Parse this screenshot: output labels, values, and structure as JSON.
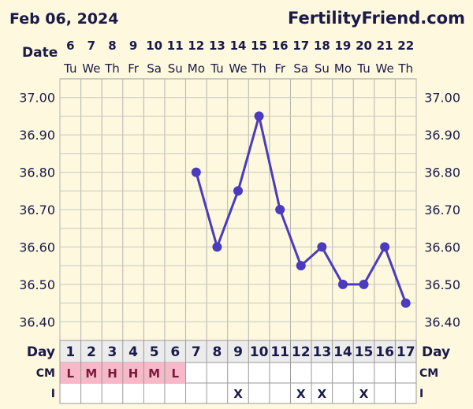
{
  "header": {
    "date": "Feb 06, 2024",
    "site": "FertilityFriend.com"
  },
  "row_labels": {
    "date": "Date",
    "day": "Day",
    "cm": "CM",
    "i": "I"
  },
  "chart_data": {
    "type": "line",
    "dates": [
      "6",
      "7",
      "8",
      "9",
      "10",
      "11",
      "12",
      "13",
      "14",
      "15",
      "16",
      "17",
      "18",
      "19",
      "20",
      "21",
      "22"
    ],
    "weekdays": [
      "Tu",
      "We",
      "Th",
      "Fr",
      "Sa",
      "Su",
      "Mo",
      "Tu",
      "We",
      "Th",
      "Fr",
      "Sa",
      "Su",
      "Mo",
      "Tu",
      "We",
      "Th"
    ],
    "cycle_days": [
      "1",
      "2",
      "3",
      "4",
      "5",
      "6",
      "7",
      "8",
      "9",
      "10",
      "11",
      "12",
      "13",
      "14",
      "15",
      "16",
      "17"
    ],
    "temperatures": [
      null,
      null,
      null,
      null,
      null,
      null,
      36.8,
      36.6,
      36.75,
      36.95,
      36.7,
      36.55,
      36.6,
      36.5,
      36.5,
      36.6,
      36.45
    ],
    "y_ticks": [
      "37.00",
      "36.90",
      "36.80",
      "36.70",
      "36.60",
      "36.50",
      "36.40"
    ],
    "ylim": [
      36.35,
      37.05
    ],
    "grid": true,
    "line_color": "#4a3bbf",
    "cm": [
      "L",
      "M",
      "H",
      "H",
      "M",
      "L",
      "",
      "",
      "",
      "",
      "",
      "",
      "",
      "",
      "",
      "",
      ""
    ],
    "cm_color": "#f7b8c8",
    "intercourse": [
      "",
      "",
      "",
      "",
      "",
      "",
      "",
      "",
      "X",
      "",
      "",
      "X",
      "X",
      "",
      "X",
      "",
      ""
    ]
  }
}
